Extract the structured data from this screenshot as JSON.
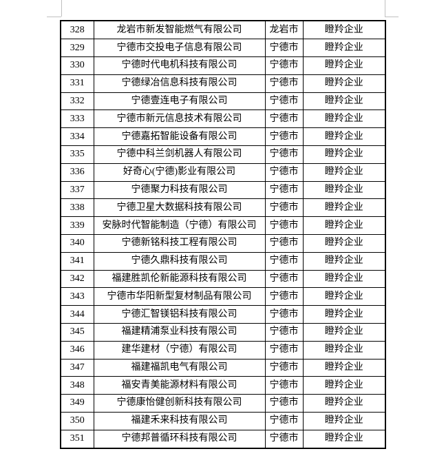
{
  "colors": {
    "text_color": "#000000",
    "border_color": "#000000",
    "crop_mark_color": "#bfbfbf",
    "page_bg": "#ffffff"
  },
  "table": {
    "columns": [
      "index",
      "company",
      "city",
      "category"
    ],
    "rows": [
      {
        "index": "328",
        "company": "龙岩市新发智能燃气有限公司",
        "city": "龙岩市",
        "category": "瞪羚企业"
      },
      {
        "index": "329",
        "company": "宁德市交投电子信息有限公司",
        "city": "宁德市",
        "category": "瞪羚企业"
      },
      {
        "index": "330",
        "company": "宁德时代电机科技有限公司",
        "city": "宁德市",
        "category": "瞪羚企业"
      },
      {
        "index": "331",
        "company": "宁德绿冶信息科技有限公司",
        "city": "宁德市",
        "category": "瞪羚企业"
      },
      {
        "index": "332",
        "company": "宁德壹连电子有限公司",
        "city": "宁德市",
        "category": "瞪羚企业"
      },
      {
        "index": "333",
        "company": "宁德市新元信息技术有限公司",
        "city": "宁德市",
        "category": "瞪羚企业"
      },
      {
        "index": "334",
        "company": "宁德嘉拓智能设备有限公司",
        "city": "宁德市",
        "category": "瞪羚企业"
      },
      {
        "index": "335",
        "company": "宁德中科兰剑机器人有限公司",
        "city": "宁德市",
        "category": "瞪羚企业"
      },
      {
        "index": "336",
        "company": "好奇心(宁德)影业有限公司",
        "city": "宁德市",
        "category": "瞪羚企业"
      },
      {
        "index": "337",
        "company": "宁德聚力科技有限公司",
        "city": "宁德市",
        "category": "瞪羚企业"
      },
      {
        "index": "338",
        "company": "宁德卫星大数据科技有限公司",
        "city": "宁德市",
        "category": "瞪羚企业"
      },
      {
        "index": "339",
        "company": "安脉时代智能制造（宁德）有限公司",
        "city": "宁德市",
        "category": "瞪羚企业"
      },
      {
        "index": "340",
        "company": "宁德新铭科技工程有限公司",
        "city": "宁德市",
        "category": "瞪羚企业"
      },
      {
        "index": "341",
        "company": "宁德久鼎科技有限公司",
        "city": "宁德市",
        "category": "瞪羚企业"
      },
      {
        "index": "342",
        "company": "福建胜凯伦新能源科技有限公司",
        "city": "宁德市",
        "category": "瞪羚企业"
      },
      {
        "index": "343",
        "company": "宁德市华阳新型复材制品有限公司",
        "city": "宁德市",
        "category": "瞪羚企业"
      },
      {
        "index": "344",
        "company": "宁德汇智镁铝科技有限公司",
        "city": "宁德市",
        "category": "瞪羚企业"
      },
      {
        "index": "345",
        "company": "福建精浦泵业科技有限公司",
        "city": "宁德市",
        "category": "瞪羚企业"
      },
      {
        "index": "346",
        "company": "建华建材（宁德）有限公司",
        "city": "宁德市",
        "category": "瞪羚企业"
      },
      {
        "index": "347",
        "company": "福建福凯电气有限公司",
        "city": "宁德市",
        "category": "瞪羚企业"
      },
      {
        "index": "348",
        "company": "福安青美能源材料有限公司",
        "city": "宁德市",
        "category": "瞪羚企业"
      },
      {
        "index": "349",
        "company": "宁德康怡健创新科技有限公司",
        "city": "宁德市",
        "category": "瞪羚企业"
      },
      {
        "index": "350",
        "company": "福建禾来科技有限公司",
        "city": "宁德市",
        "category": "瞪羚企业"
      },
      {
        "index": "351",
        "company": "宁德邦普循环科技有限公司",
        "city": "宁德市",
        "category": "瞪羚企业"
      }
    ]
  }
}
